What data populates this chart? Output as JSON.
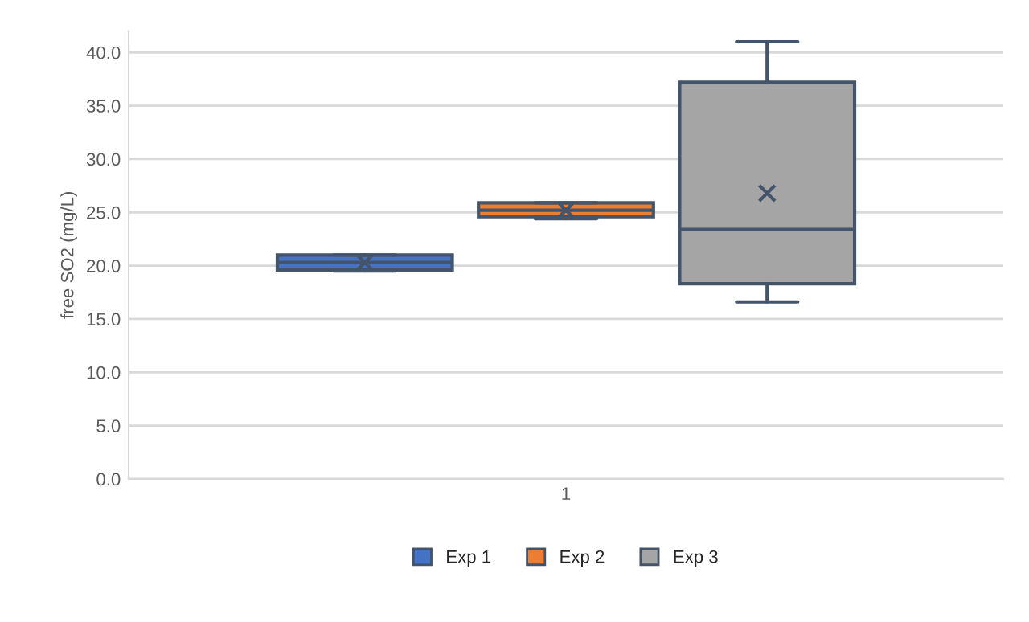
{
  "chart_data": {
    "type": "box",
    "ylabel": "free SO2 (mg/L)",
    "categories": [
      "1"
    ],
    "series": [
      {
        "name": "Exp 1",
        "color": "#4472c4",
        "boxes": [
          {
            "low": 19.5,
            "q1": 19.6,
            "median": 20.3,
            "q3": 21.0,
            "high": 21.0,
            "mean": 20.3
          }
        ]
      },
      {
        "name": "Exp 2",
        "color": "#ed7d31",
        "boxes": [
          {
            "low": 24.4,
            "q1": 24.6,
            "median": 25.2,
            "q3": 25.9,
            "high": 25.9,
            "mean": 25.2
          }
        ]
      },
      {
        "name": "Exp 3",
        "color": "#a5a5a5",
        "boxes": [
          {
            "low": 16.6,
            "q1": 18.3,
            "median": 23.4,
            "q3": 37.2,
            "high": 41.0,
            "mean": 26.8
          }
        ]
      }
    ],
    "ylim": [
      0,
      42
    ],
    "yticks": [
      {
        "value": 0,
        "label": "0.0"
      },
      {
        "value": 5,
        "label": "5.0"
      },
      {
        "value": 10,
        "label": "10.0"
      },
      {
        "value": 15,
        "label": "15.0"
      },
      {
        "value": 20,
        "label": "20.0"
      },
      {
        "value": 25,
        "label": "25.0"
      },
      {
        "value": 30,
        "label": "30.0"
      },
      {
        "value": 35,
        "label": "35.0"
      },
      {
        "value": 40,
        "label": "40.0"
      }
    ],
    "grid": "y",
    "legend": "bottom"
  }
}
